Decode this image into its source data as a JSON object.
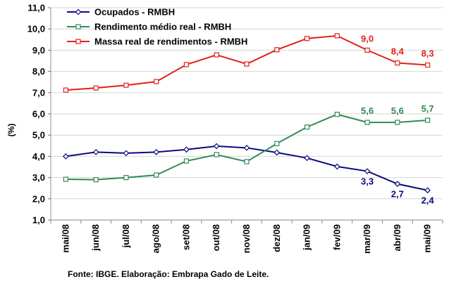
{
  "chart_data": {
    "type": "line",
    "title": "",
    "xlabel": "",
    "ylabel": "(%)",
    "ylim": [
      1.0,
      11.0
    ],
    "yticks": [
      "1,0",
      "2,0",
      "3,0",
      "4,0",
      "5,0",
      "6,0",
      "7,0",
      "8,0",
      "9,0",
      "10,0",
      "11,0"
    ],
    "categories": [
      "mai/08",
      "jun/08",
      "jul/08",
      "ago/08",
      "set/08",
      "out/08",
      "nov/08",
      "dez/08",
      "jan/09",
      "fev/09",
      "mar/09",
      "abr/09",
      "mai/09"
    ],
    "grid": "horizontal",
    "legend_position": "top-left",
    "series": [
      {
        "name": "Ocupados - RMBH",
        "color": "#0a0a80",
        "marker": "diamond",
        "values": [
          4.0,
          4.2,
          4.15,
          4.2,
          4.32,
          4.48,
          4.4,
          4.18,
          3.92,
          3.52,
          3.3,
          2.7,
          2.4
        ],
        "labels": {
          "10": "3,3",
          "11": "2,7",
          "12": "2,4"
        }
      },
      {
        "name": "Rendimento médio real - RMBH",
        "color": "#2e8b57",
        "marker": "square",
        "values": [
          2.92,
          2.9,
          3.0,
          3.12,
          3.78,
          4.08,
          3.75,
          4.6,
          5.38,
          5.98,
          5.6,
          5.6,
          5.7
        ],
        "labels": {
          "10": "5,6",
          "11": "5,6",
          "12": "5,7"
        }
      },
      {
        "name": "Massa real de rendimentos - RMBH",
        "color": "#e0201a",
        "marker": "square",
        "values": [
          7.12,
          7.22,
          7.35,
          7.52,
          8.32,
          8.78,
          8.35,
          9.02,
          9.55,
          9.68,
          9.0,
          8.4,
          8.3
        ],
        "labels": {
          "10": "9,0",
          "11": "8,4",
          "12": "8,3"
        }
      }
    ]
  },
  "source": "Fonte: IBGE. Elaboração: Embrapa Gado de Leite."
}
